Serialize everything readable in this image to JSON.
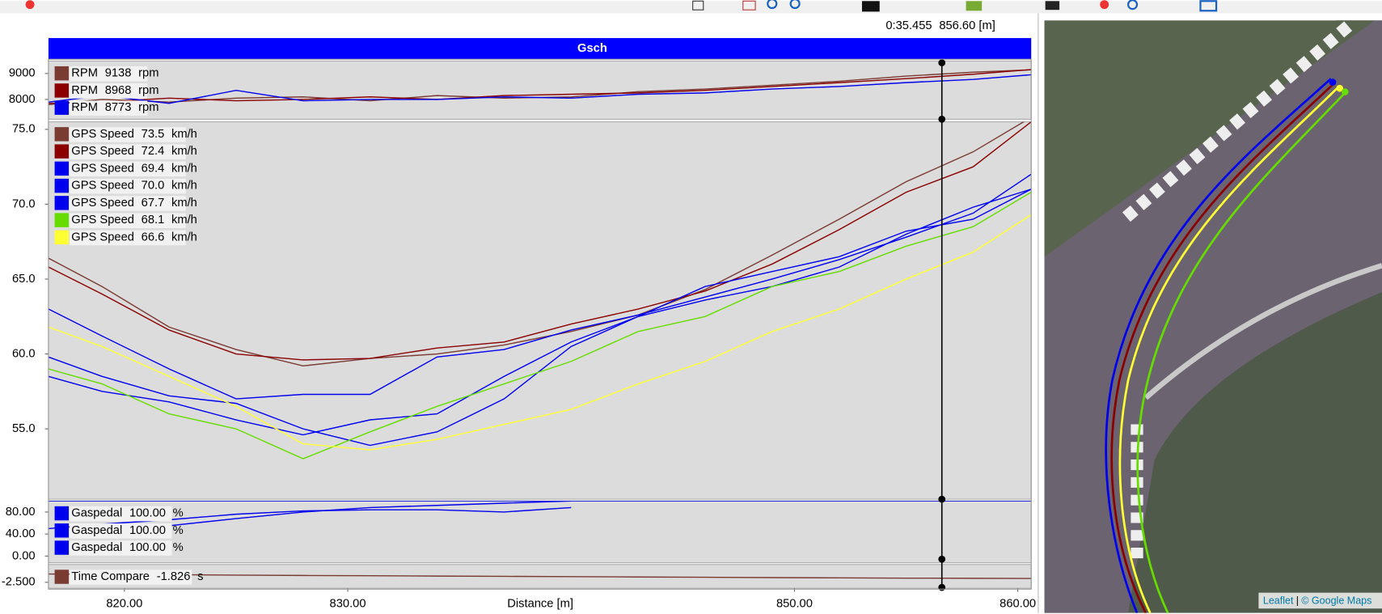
{
  "toolbar": {
    "cursor_time": "0:35.455",
    "cursor_label": "856.60 [m]"
  },
  "chart_title": "Gsch",
  "cursor": {
    "x": 856.6
  },
  "x_axis": {
    "label": "Distance [m]",
    "xlim": [
      816.6,
      860.6
    ],
    "xticks": [
      {
        "value": 820,
        "label": "820.00"
      },
      {
        "value": 830,
        "label": "830.00"
      },
      {
        "value": 850,
        "label": "850.00"
      },
      {
        "value": 860,
        "label": "860.00"
      }
    ],
    "x": [
      816.6,
      819,
      822,
      825,
      828,
      831,
      834,
      837,
      840,
      843,
      846,
      849,
      852,
      855,
      858,
      860.6
    ]
  },
  "chart_data": [
    {
      "type": "line",
      "ylim": [
        7240,
        9480
      ],
      "yticks": [
        8000,
        9000
      ],
      "series": [
        {
          "name": "RPM",
          "reading": "9138",
          "unit": "rpm",
          "color": "#7a3b33",
          "values": [
            7800,
            8000,
            7900,
            8050,
            8100,
            7950,
            8150,
            8050,
            8100,
            8300,
            8400,
            8550,
            8700,
            8900,
            9050,
            9140
          ]
        },
        {
          "name": "RPM",
          "reading": "8968",
          "unit": "rpm",
          "color": "#8b0000",
          "values": [
            7850,
            7900,
            8050,
            7950,
            8000,
            8100,
            8000,
            8150,
            8200,
            8250,
            8350,
            8500,
            8650,
            8800,
            8970,
            9150
          ]
        },
        {
          "name": "RPM",
          "reading": "8773",
          "unit": "rpm",
          "color": "#0000ee",
          "values": [
            7900,
            8150,
            7850,
            8350,
            7950,
            8000,
            8000,
            8100,
            8050,
            8200,
            8250,
            8400,
            8500,
            8650,
            8770,
            8950
          ]
        }
      ]
    },
    {
      "type": "line",
      "ylim": [
        50.3,
        75.5
      ],
      "yticks": [
        {
          "value": 55,
          "label": "55.0"
        },
        {
          "value": 60,
          "label": "60.0"
        },
        {
          "value": 65,
          "label": "65.0"
        },
        {
          "value": 70,
          "label": "70.0"
        },
        {
          "value": 75,
          "label": "75.0"
        }
      ],
      "series": [
        {
          "name": "GPS Speed",
          "reading": "73.5",
          "unit": "km/h",
          "color": "#7a3b33",
          "values": [
            66.4,
            64.5,
            61.8,
            60.3,
            59.2,
            59.7,
            60.0,
            60.6,
            61.5,
            62.6,
            64.3,
            66.6,
            69.0,
            71.5,
            73.5,
            75.8
          ]
        },
        {
          "name": "GPS Speed",
          "reading": "72.4",
          "unit": "km/h",
          "color": "#8b0000",
          "values": [
            65.8,
            64.0,
            61.6,
            60.0,
            59.6,
            59.7,
            60.4,
            60.8,
            62.0,
            63.0,
            64.2,
            66.0,
            68.3,
            70.8,
            72.5,
            75.5
          ]
        },
        {
          "name": "GPS Speed",
          "reading": "69.4",
          "unit": "km/h",
          "color": "#0000ee",
          "values": [
            63.0,
            61.2,
            59.0,
            57.0,
            57.3,
            57.3,
            59.8,
            60.3,
            61.6,
            62.6,
            63.8,
            65.0,
            66.3,
            67.8,
            69.4,
            72.0
          ]
        },
        {
          "name": "GPS Speed",
          "reading": "70.0",
          "unit": "km/h",
          "color": "#0000ee",
          "values": [
            59.8,
            58.5,
            57.2,
            56.7,
            55.0,
            53.9,
            54.8,
            57.0,
            60.5,
            62.5,
            63.6,
            64.5,
            65.8,
            68.0,
            69.8,
            71.0
          ]
        },
        {
          "name": "GPS Speed",
          "reading": "67.7",
          "unit": "km/h",
          "color": "#0000ee",
          "values": [
            58.5,
            57.5,
            56.8,
            55.6,
            54.6,
            55.6,
            56.0,
            58.5,
            60.8,
            62.5,
            64.5,
            65.5,
            66.5,
            68.2,
            69.0,
            71.0
          ]
        },
        {
          "name": "GPS Speed",
          "reading": "68.1",
          "unit": "km/h",
          "color": "#66dd00",
          "values": [
            59.0,
            58.0,
            56.0,
            55.0,
            53.0,
            54.8,
            56.5,
            58.0,
            59.5,
            61.5,
            62.5,
            64.5,
            65.5,
            67.2,
            68.5,
            70.8
          ]
        },
        {
          "name": "GPS Speed",
          "reading": "66.6",
          "unit": "km/h",
          "color": "#ffff33",
          "values": [
            61.8,
            60.5,
            58.5,
            56.5,
            54.0,
            53.6,
            54.3,
            55.3,
            56.3,
            58.0,
            59.5,
            61.5,
            63.0,
            65.0,
            66.8,
            69.3
          ]
        }
      ]
    },
    {
      "type": "line",
      "ylim": [
        -12,
        100
      ],
      "yticks": [
        {
          "value": 0,
          "label": "0.00"
        },
        {
          "value": 40,
          "label": "40.00"
        },
        {
          "value": 80,
          "label": "80.00"
        }
      ],
      "series": [
        {
          "name": "Gaspedal",
          "reading": "100.00",
          "unit": "%",
          "color": "#0000ee",
          "values": [
            50,
            58,
            66,
            76,
            82,
            84,
            84,
            80,
            88,
            null,
            null,
            null,
            null,
            null,
            null,
            null
          ]
        },
        {
          "name": "Gaspedal",
          "reading": "100.00",
          "unit": "%",
          "color": "#0000ee",
          "values": [
            null,
            null,
            55,
            68,
            80,
            88,
            92,
            96,
            100,
            null,
            null,
            null,
            null,
            null,
            null,
            null
          ]
        },
        {
          "name": "Gaspedal",
          "reading": "100.00",
          "unit": "%",
          "color": "#0000ee",
          "values": [
            100,
            100,
            100,
            100,
            100,
            100,
            100,
            100,
            100,
            100,
            100,
            100,
            100,
            100,
            100,
            100
          ]
        }
      ]
    },
    {
      "type": "line",
      "ylim": [
        -3.5,
        0.5
      ],
      "yticks": [
        {
          "value": -2.5,
          "label": "-2.500"
        }
      ],
      "series": [
        {
          "name": "Time Compare",
          "reading": "-1.826",
          "unit": "s",
          "color": "#7a3b33",
          "values": [
            -1.1,
            -1.15,
            -1.2,
            -1.3,
            -1.35,
            -1.4,
            -1.45,
            -1.5,
            -1.55,
            -1.6,
            -1.65,
            -1.7,
            -1.75,
            -1.8,
            -1.83,
            -1.85
          ]
        }
      ]
    }
  ],
  "map": {
    "attribution": [
      "Leaflet",
      "|",
      "© Google Maps"
    ]
  }
}
